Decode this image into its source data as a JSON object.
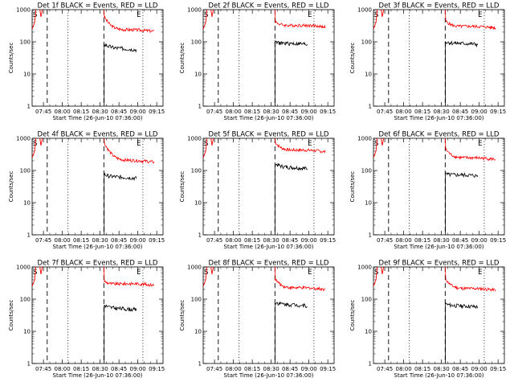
{
  "chart_data": [
    {
      "type": "line",
      "title": "Det 1f BLACK = Events, RED = LLD",
      "xlabel": "Start Time (26-Jun-10 07:36:00)",
      "ylabel": "Counts/sec",
      "yscale": "log",
      "ylim": [
        1,
        1000
      ],
      "x_ticks": [
        "07:45",
        "08:00",
        "08:15",
        "08:30",
        "08:45",
        "09:00",
        "09:15"
      ],
      "y_ticks": [
        "1",
        "10",
        "100",
        "1000"
      ],
      "markers": [
        "S",
        "E"
      ],
      "series": [
        {
          "color": "#ff0000",
          "level": 210,
          "start": 650,
          "hump": 1.0
        },
        {
          "color": "#000000",
          "level": 55,
          "start": 85
        }
      ]
    },
    {
      "type": "line",
      "title": "Det 2f BLACK = Events, RED = LLD",
      "xlabel": "Start Time (26-Jun-10 07:36:00)",
      "ylabel": "Counts/sec",
      "yscale": "log",
      "ylim": [
        1,
        1000
      ],
      "x_ticks": [
        "07:45",
        "08:00",
        "08:15",
        "08:30",
        "08:45",
        "09:00",
        "09:15"
      ],
      "y_ticks": [
        "1",
        "10",
        "100",
        "1000"
      ],
      "markers": [
        "S",
        "E"
      ],
      "series": [
        {
          "color": "#ff0000",
          "level": 290,
          "start": 450,
          "hump": 1.0
        },
        {
          "color": "#000000",
          "level": 80,
          "start": 95
        }
      ]
    },
    {
      "type": "line",
      "title": "Det 3f BLACK = Events, RED = LLD",
      "xlabel": "Start Time (26-Jun-10 07:36:00)",
      "ylabel": "Counts/sec",
      "yscale": "log",
      "ylim": [
        1,
        1000
      ],
      "x_ticks": [
        "07:45",
        "08:00",
        "08:15",
        "08:30",
        "08:45",
        "09:00",
        "09:15"
      ],
      "y_ticks": [
        "1",
        "10",
        "100",
        "1000"
      ],
      "markers": [
        "S",
        "E"
      ],
      "series": [
        {
          "color": "#ff0000",
          "level": 270,
          "start": 480,
          "hump": 1.0
        },
        {
          "color": "#000000",
          "level": 80,
          "start": 100
        }
      ]
    },
    {
      "type": "line",
      "title": "Det 4f BLACK = Events, RED = LLD",
      "xlabel": "Start Time (26-Jun-10 07:36:00)",
      "ylabel": "Counts/sec",
      "yscale": "log",
      "ylim": [
        1,
        1000
      ],
      "x_ticks": [
        "07:45",
        "08:00",
        "08:15",
        "08:30",
        "08:45",
        "09:00",
        "09:15"
      ],
      "y_ticks": [
        "1",
        "10",
        "100",
        "1000"
      ],
      "markers": [
        "S",
        "E"
      ],
      "series": [
        {
          "color": "#ff0000",
          "level": 180,
          "start": 800,
          "hump": 1.1
        },
        {
          "color": "#000000",
          "level": 55,
          "start": 75
        }
      ]
    },
    {
      "type": "line",
      "title": "Det 5f BLACK = Events, RED = LLD",
      "xlabel": "Start Time (26-Jun-10 07:36:00)",
      "ylabel": "Counts/sec",
      "yscale": "log",
      "ylim": [
        1,
        1000
      ],
      "x_ticks": [
        "07:45",
        "08:00",
        "08:15",
        "08:30",
        "08:45",
        "09:00",
        "09:15"
      ],
      "y_ticks": [
        "1",
        "10",
        "100",
        "1000"
      ],
      "markers": [
        "S",
        "E"
      ],
      "series": [
        {
          "color": "#ff0000",
          "level": 380,
          "start": 800,
          "hump": 1.1
        },
        {
          "color": "#000000",
          "level": 110,
          "start": 160
        }
      ]
    },
    {
      "type": "line",
      "title": "Det 6f BLACK = Events, RED = LLD",
      "xlabel": "Start Time (26-Jun-10 07:36:00)",
      "ylabel": "Counts/sec",
      "yscale": "log",
      "ylim": [
        1,
        1000
      ],
      "x_ticks": [
        "07:45",
        "08:00",
        "08:15",
        "08:30",
        "08:45",
        "09:00",
        "09:15"
      ],
      "y_ticks": [
        "1",
        "10",
        "100",
        "1000"
      ],
      "markers": [
        "S",
        "E"
      ],
      "series": [
        {
          "color": "#ff0000",
          "level": 220,
          "start": 500,
          "hump": 1.0
        },
        {
          "color": "#000000",
          "level": 65,
          "start": 75
        }
      ]
    },
    {
      "type": "line",
      "title": "Det 7f BLACK = Events, RED = LLD",
      "xlabel": "Start Time (26-Jun-10 07:36:00)",
      "ylabel": "Counts/sec",
      "yscale": "log",
      "ylim": [
        1,
        1000
      ],
      "x_ticks": [
        "07:45",
        "08:00",
        "08:15",
        "08:30",
        "08:45",
        "09:00",
        "09:15"
      ],
      "y_ticks": [
        "1",
        "10",
        "100",
        "1000"
      ],
      "markers": [
        "S",
        "E"
      ],
      "series": [
        {
          "color": "#ff0000",
          "level": 270,
          "start": 380,
          "hump": 1.0
        },
        {
          "color": "#000000",
          "level": 45,
          "start": 65
        }
      ]
    },
    {
      "type": "line",
      "title": "Det 8f BLACK = Events, RED = LLD",
      "xlabel": "Start Time (26-Jun-10 07:36:00)",
      "ylabel": "Counts/sec",
      "yscale": "log",
      "ylim": [
        1,
        1000
      ],
      "x_ticks": [
        "07:45",
        "08:00",
        "08:15",
        "08:30",
        "08:45",
        "09:00",
        "09:15"
      ],
      "y_ticks": [
        "1",
        "10",
        "100",
        "1000"
      ],
      "markers": [
        "S",
        "E"
      ],
      "series": [
        {
          "color": "#ff0000",
          "level": 200,
          "start": 450,
          "hump": 1.0
        },
        {
          "color": "#000000",
          "level": 60,
          "start": 80
        }
      ]
    },
    {
      "type": "line",
      "title": "Det 9f BLACK = Events, RED = LLD",
      "xlabel": "Start Time (26-Jun-10 07:36:00)",
      "ylabel": "Counts/sec",
      "yscale": "log",
      "ylim": [
        1,
        1000
      ],
      "x_ticks": [
        "07:45",
        "08:00",
        "08:15",
        "08:30",
        "08:45",
        "09:00",
        "09:15"
      ],
      "y_ticks": [
        "1",
        "10",
        "100",
        "1000"
      ],
      "markers": [
        "S",
        "E"
      ],
      "series": [
        {
          "color": "#ff0000",
          "level": 190,
          "start": 450,
          "hump": 1.0
        },
        {
          "color": "#000000",
          "level": 55,
          "start": 70
        }
      ]
    }
  ]
}
